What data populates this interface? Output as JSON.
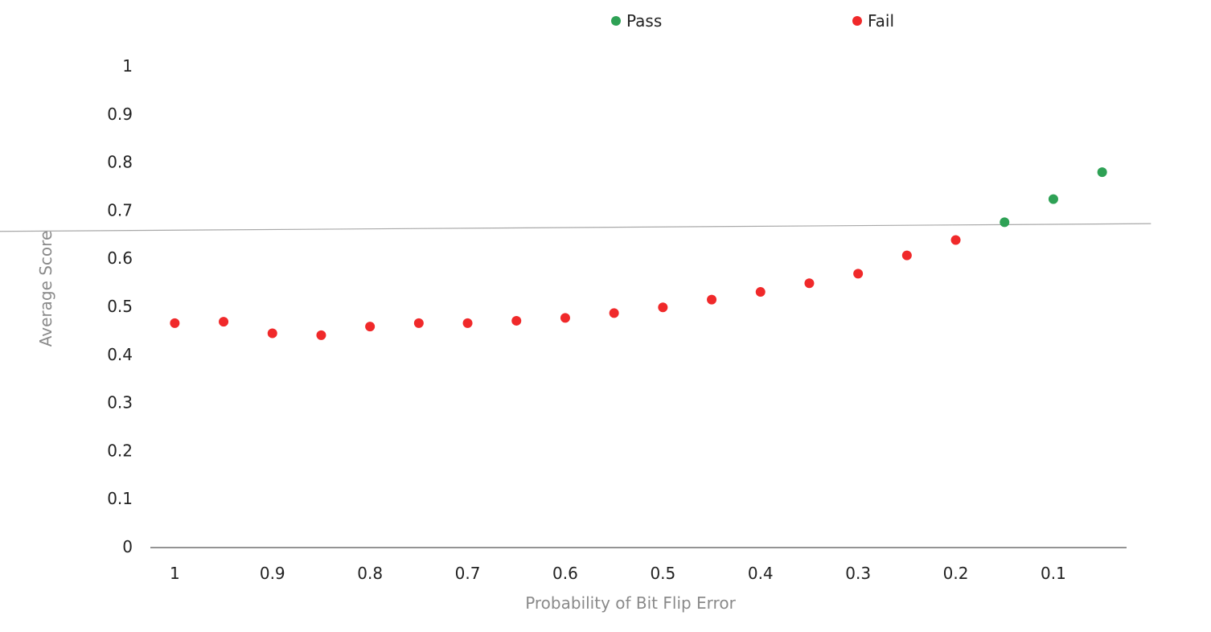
{
  "chart_data": {
    "type": "scatter",
    "title": "",
    "xlabel": "Probability of Bit Flip Error",
    "ylabel": "Average Score",
    "x_reversed": true,
    "xlim": [
      0.025,
      1.025
    ],
    "ylim": [
      0,
      1
    ],
    "x_ticks": [
      1,
      0.9,
      0.8,
      0.7,
      0.6,
      0.5,
      0.4,
      0.3,
      0.2,
      0.1
    ],
    "x_tick_labels": [
      "1",
      "0.9",
      "0.8",
      "0.7",
      "0.6",
      "0.5",
      "0.4",
      "0.3",
      "0.2",
      "0.1"
    ],
    "y_ticks": [
      0,
      0.1,
      0.2,
      0.3,
      0.4,
      0.5,
      0.6,
      0.7,
      0.8,
      0.9,
      1
    ],
    "y_tick_labels": [
      "0",
      "0.1",
      "0.2",
      "0.3",
      "0.4",
      "0.5",
      "0.6",
      "0.7",
      "0.8",
      "0.9",
      "1"
    ],
    "grid": false,
    "legend_position": "top-center",
    "series": [
      {
        "name": "Pass",
        "color": "#2ea155",
        "points": [
          {
            "x": 0.15,
            "y": 0.675
          },
          {
            "x": 0.1,
            "y": 0.723
          },
          {
            "x": 0.05,
            "y": 0.779
          }
        ]
      },
      {
        "name": "Fail",
        "color": "#f0292a",
        "points": [
          {
            "x": 1.0,
            "y": 0.465
          },
          {
            "x": 0.95,
            "y": 0.468
          },
          {
            "x": 0.9,
            "y": 0.444
          },
          {
            "x": 0.85,
            "y": 0.44
          },
          {
            "x": 0.8,
            "y": 0.458
          },
          {
            "x": 0.75,
            "y": 0.465
          },
          {
            "x": 0.7,
            "y": 0.465
          },
          {
            "x": 0.65,
            "y": 0.47
          },
          {
            "x": 0.6,
            "y": 0.476
          },
          {
            "x": 0.55,
            "y": 0.486
          },
          {
            "x": 0.5,
            "y": 0.498
          },
          {
            "x": 0.45,
            "y": 0.514
          },
          {
            "x": 0.4,
            "y": 0.53
          },
          {
            "x": 0.35,
            "y": 0.548
          },
          {
            "x": 0.3,
            "y": 0.568
          },
          {
            "x": 0.25,
            "y": 0.606
          },
          {
            "x": 0.2,
            "y": 0.638
          }
        ]
      }
    ],
    "threshold_line": {
      "color": "#a8a8a8",
      "x_values": [
        1.25,
        0.0
      ],
      "y_values": [
        0.655,
        0.672
      ]
    },
    "axis_color": "#555555"
  }
}
